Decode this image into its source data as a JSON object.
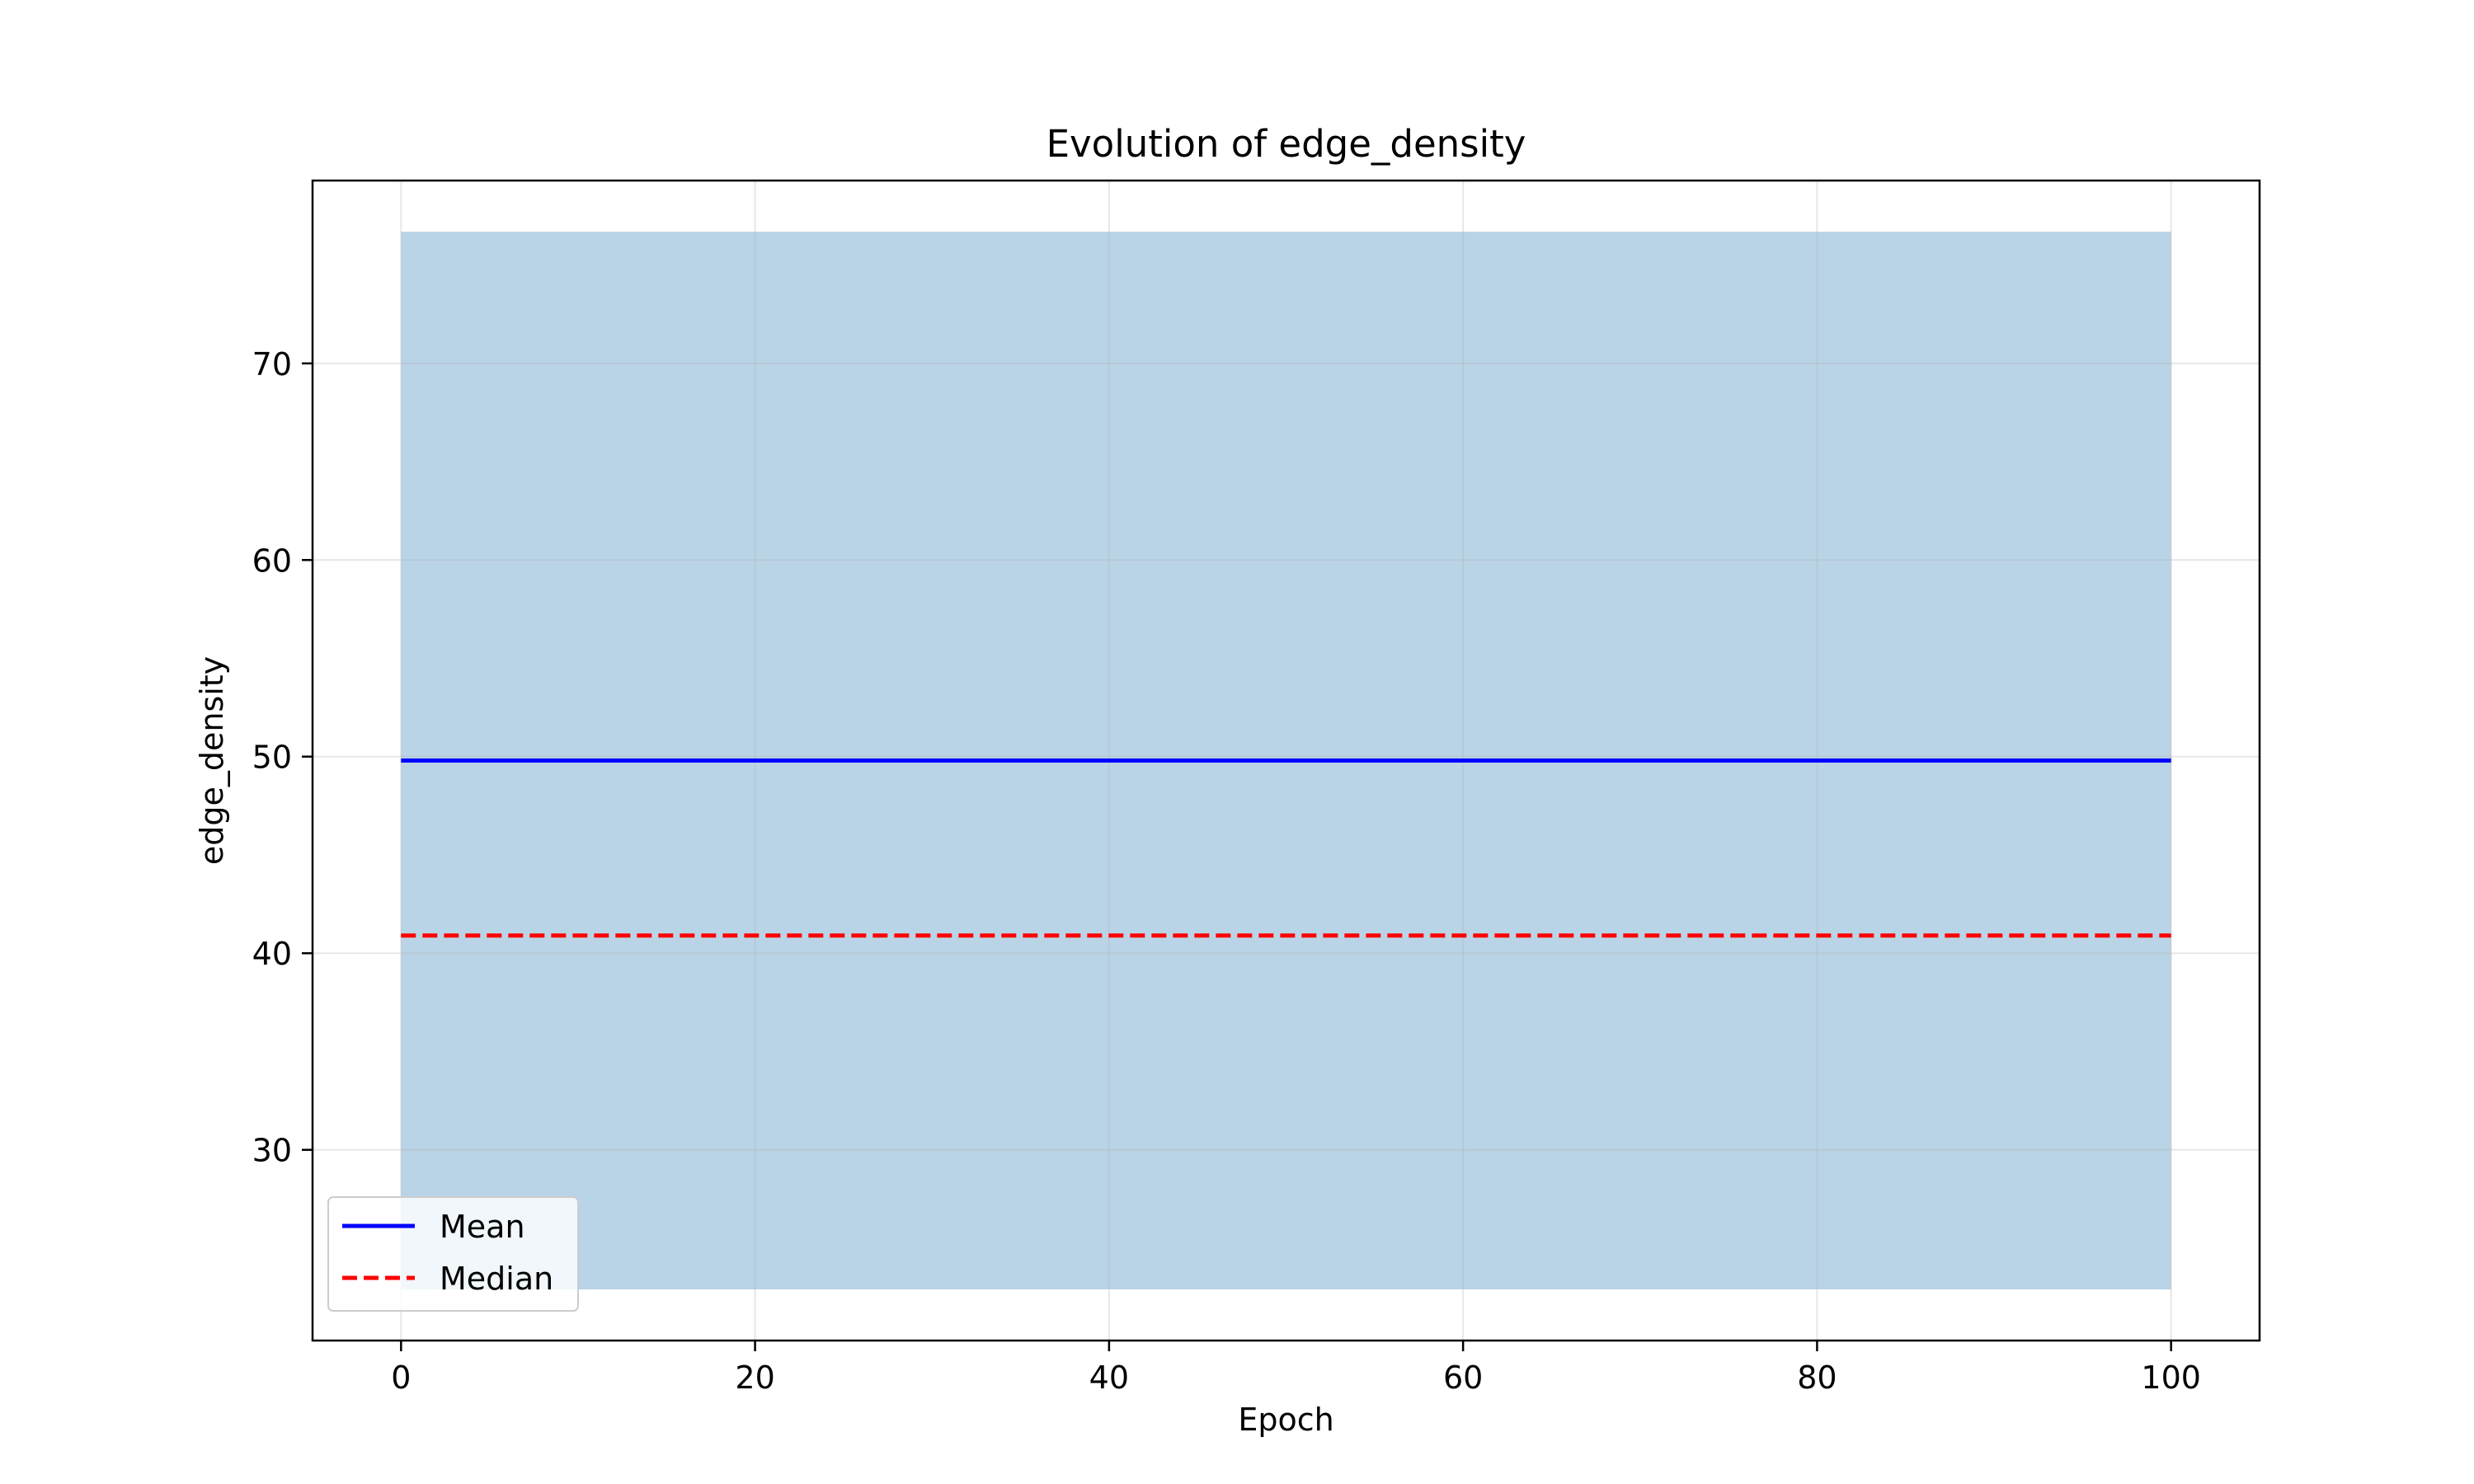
{
  "chart_data": {
    "type": "line",
    "title": "Evolution of edge_density",
    "xlabel": "Epoch",
    "ylabel": "edge_density",
    "xlim": [
      -5,
      105
    ],
    "ylim": [
      20.3,
      79.3
    ],
    "xticks": [
      0,
      20,
      40,
      60,
      80,
      100
    ],
    "yticks": [
      30,
      40,
      50,
      60,
      70
    ],
    "grid": true,
    "legend_position": "lower-left",
    "band": {
      "x": [
        0,
        100
      ],
      "lower": [
        22.9,
        22.9
      ],
      "upper": [
        76.7,
        76.7
      ],
      "color": "#bad4e7"
    },
    "series": [
      {
        "name": "Mean",
        "x": [
          0,
          100
        ],
        "y": [
          49.8,
          49.8
        ],
        "color": "#0000ff",
        "style": "solid"
      },
      {
        "name": "Median",
        "x": [
          0,
          100
        ],
        "y": [
          40.9,
          40.9
        ],
        "color": "#ff0000",
        "style": "dashed"
      }
    ]
  }
}
